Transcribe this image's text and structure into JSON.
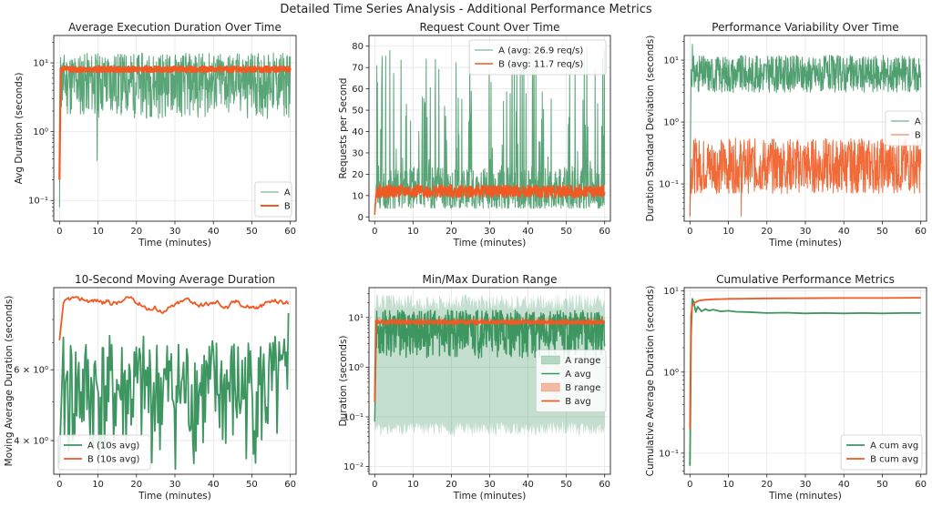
{
  "figure": {
    "suptitle": "Detailed Time Series Analysis - Additional Performance Metrics",
    "colors": {
      "A": "#3d9560",
      "B": "#f05a22"
    }
  },
  "chart_data": [
    {
      "type": "line",
      "title": "Average Execution Duration Over Time",
      "xlabel": "Time (minutes)",
      "ylabel": "Avg Duration (seconds)",
      "xlim": [
        -1.5,
        61.5
      ],
      "ylim": [
        0.05,
        25
      ],
      "yscale": "log",
      "xticks": [
        0,
        10,
        20,
        30,
        40,
        50,
        60
      ],
      "yticks": [
        0.1,
        1,
        10
      ],
      "yticklabels": [
        "10⁻¹",
        "10⁰",
        "10¹"
      ],
      "legend": {
        "position": "lower-right",
        "entries": [
          "A",
          "B"
        ]
      },
      "grid": true,
      "series": [
        {
          "name": "A",
          "color": "#3d9560",
          "start": 0.08,
          "low": 1.5,
          "high": 14,
          "t0": 0.3,
          "x_end": 60,
          "n": 720,
          "seed": 11,
          "style": "jagged",
          "lw": 1,
          "alpha": 0.85,
          "spike_at": 9.8,
          "spike_value": 0.38
        },
        {
          "name": "B",
          "color": "#f05a22",
          "start": 0.2,
          "low": 7.3,
          "high": 8.9,
          "t0": 0.3,
          "x_end": 60,
          "n": 720,
          "seed": 12,
          "style": "noise",
          "lw": 2.2,
          "alpha": 1
        }
      ]
    },
    {
      "type": "line",
      "title": "Request Count Over Time",
      "xlabel": "Time (minutes)",
      "ylabel": "Requests per Second",
      "xlim": [
        -1.5,
        61.5
      ],
      "ylim": [
        -2,
        85
      ],
      "yscale": "linear",
      "xticks": [
        0,
        10,
        20,
        30,
        40,
        50,
        60
      ],
      "yticks": [
        0,
        10,
        20,
        30,
        40,
        50,
        60,
        70,
        80
      ],
      "yticklabels": [
        "0",
        "10",
        "20",
        "30",
        "40",
        "50",
        "60",
        "70",
        "80"
      ],
      "legend": {
        "position": "top-right",
        "entries": [
          "A (avg: 26.9 req/s)",
          "B (avg: 11.7 req/s)"
        ]
      },
      "grid": true,
      "series": [
        {
          "name": "A (avg: 26.9 req/s)",
          "color": "#3d9560",
          "start": 5,
          "low": 4,
          "high": 80,
          "t0": 0.3,
          "x_end": 60,
          "n": 720,
          "seed": 21,
          "style": "spiky",
          "lw": 1,
          "alpha": 0.85
        },
        {
          "name": "B (avg: 11.7 req/s)",
          "color": "#f05a22",
          "start": 1,
          "low": 9,
          "high": 15,
          "t0": 0.3,
          "x_end": 60,
          "n": 720,
          "seed": 22,
          "style": "noise",
          "lw": 1.6,
          "alpha": 1
        }
      ]
    },
    {
      "type": "line",
      "title": "Performance Variability Over Time",
      "xlabel": "Time (minutes)",
      "ylabel": "Duration Standard Deviation (seconds)",
      "xlim": [
        -1.5,
        61.5
      ],
      "ylim": [
        0.025,
        25
      ],
      "yscale": "log",
      "xticks": [
        0,
        10,
        20,
        30,
        40,
        50,
        60
      ],
      "yticks": [
        0.1,
        1,
        10
      ],
      "yticklabels": [
        "10⁻¹",
        "10⁰",
        "10¹"
      ],
      "legend": {
        "position": "center-right",
        "entries": [
          "A",
          "B"
        ]
      },
      "grid": true,
      "series": [
        {
          "name": "A",
          "color": "#3d9560",
          "start": 0.03,
          "low": 3,
          "high": 12,
          "t0": 0.3,
          "x_end": 60,
          "n": 720,
          "seed": 31,
          "style": "noise",
          "lw": 1,
          "alpha": 0.9,
          "spike_at": 0.6,
          "spike_value": 18
        },
        {
          "name": "B",
          "color": "#f05a22",
          "start": 0.03,
          "low": 0.07,
          "high": 0.55,
          "t0": 0.3,
          "x_end": 60,
          "n": 720,
          "seed": 32,
          "style": "noise",
          "lw": 1,
          "alpha": 0.9,
          "spike_at": 13.3,
          "spike_value": 0.03
        }
      ]
    },
    {
      "type": "line",
      "title": "10-Second Moving Average Duration",
      "xlabel": "Time (minutes)",
      "ylabel": "Moving Average Duration (seconds)",
      "xlim": [
        -1.5,
        61.5
      ],
      "ylim": [
        3.3,
        9.6
      ],
      "yscale": "log",
      "xticks": [
        0,
        10,
        20,
        30,
        40,
        50,
        60
      ],
      "yticks": [
        4,
        6
      ],
      "yticklabels": [
        "4 × 10⁰",
        "6 × 10⁰"
      ],
      "legend": {
        "position": "lower-left",
        "entries": [
          "A (10s avg)",
          "B (10s avg)"
        ]
      },
      "grid": true,
      "series": [
        {
          "name": "A (10s avg)",
          "color": "#3d9560",
          "start": 3.5,
          "low": 3.4,
          "high": 7.3,
          "t0": 1,
          "x_end": 59.5,
          "n": 220,
          "seed": 41,
          "style": "jagged",
          "lw": 1.8,
          "alpha": 1,
          "spike_at": 59.5,
          "spike_value": 8.3
        },
        {
          "name": "B (10s avg)",
          "color": "#f05a22",
          "start": 7.1,
          "low": 8.3,
          "high": 9.1,
          "t0": 1,
          "x_end": 59.5,
          "n": 220,
          "seed": 42,
          "style": "smooth",
          "lw": 1.8,
          "alpha": 1
        }
      ]
    },
    {
      "type": "area",
      "title": "Min/Max Duration Range",
      "xlabel": "Time (minutes)",
      "ylabel": "Duration (seconds)",
      "xlim": [
        -1.5,
        61.5
      ],
      "ylim": [
        0.007,
        40
      ],
      "yscale": "log",
      "xticks": [
        0,
        10,
        20,
        30,
        40,
        50,
        60
      ],
      "yticks": [
        0.01,
        0.1,
        1,
        10
      ],
      "yticklabels": [
        "10⁻²",
        "10⁻¹",
        "10⁰",
        "10¹"
      ],
      "legend": {
        "position": "center-right",
        "entries": [
          "A range",
          "A avg",
          "B range",
          "B avg"
        ]
      },
      "grid": true,
      "bands": [
        {
          "name": "A range",
          "color": "#3d9560",
          "low": [
            0.04,
            0.08
          ],
          "high": [
            14,
            30
          ],
          "t0": 0,
          "x_end": 60,
          "n": 360,
          "seed": 51,
          "alpha": 0.3
        },
        {
          "name": "B range",
          "color": "#f05a22",
          "low": [
            6.8,
            7.6
          ],
          "high": [
            9,
            10.5
          ],
          "t0": 0.3,
          "x_end": 60,
          "n": 360,
          "seed": 52,
          "alpha": 0.35
        }
      ],
      "series": [
        {
          "name": "A avg",
          "color": "#3d9560",
          "start": 0.08,
          "low": 1.5,
          "high": 14,
          "t0": 0.3,
          "x_end": 60,
          "n": 720,
          "seed": 53,
          "style": "jagged",
          "lw": 1.4,
          "alpha": 1
        },
        {
          "name": "B avg",
          "color": "#f05a22",
          "start": 0.2,
          "low": 7.3,
          "high": 8.9,
          "t0": 0.3,
          "x_end": 60,
          "n": 720,
          "seed": 54,
          "style": "noise",
          "lw": 1.8,
          "alpha": 1
        }
      ]
    },
    {
      "type": "line",
      "title": "Cumulative Performance Metrics",
      "xlabel": "Time (minutes)",
      "ylabel": "Cumulative Average Duration (seconds)",
      "xlim": [
        -1.5,
        61.5
      ],
      "ylim": [
        0.055,
        11
      ],
      "yscale": "log",
      "xticks": [
        0,
        10,
        20,
        30,
        40,
        50,
        60
      ],
      "yticks": [
        0.1,
        1,
        10
      ],
      "yticklabels": [
        "10⁻¹",
        "10⁰",
        "10¹"
      ],
      "legend": {
        "position": "lower-right",
        "entries": [
          "A cum avg",
          "B cum avg"
        ]
      },
      "grid": true,
      "series": [
        {
          "name": "A cum avg",
          "color": "#3d9560",
          "x": [
            0,
            0.15,
            0.3,
            0.6,
            1,
            1.5,
            2,
            3,
            4,
            5,
            6,
            8,
            10,
            12,
            15,
            20,
            25,
            30,
            35,
            40,
            45,
            50,
            55,
            60
          ],
          "y": [
            0.07,
            0.5,
            3,
            8,
            7.2,
            5.5,
            6.4,
            5.6,
            6.0,
            5.7,
            5.9,
            5.6,
            5.7,
            5.55,
            5.5,
            5.35,
            5.4,
            5.3,
            5.35,
            5.3,
            5.35,
            5.3,
            5.35,
            5.35
          ],
          "lw": 1.8,
          "alpha": 1
        },
        {
          "name": "B cum avg",
          "color": "#f05a22",
          "x": [
            0,
            0.15,
            0.3,
            0.6,
            1,
            1.5,
            2,
            3,
            4,
            5,
            6,
            8,
            10,
            15,
            20,
            30,
            40,
            50,
            60
          ],
          "y": [
            0.2,
            1.2,
            5,
            6.6,
            7.0,
            7.3,
            7.5,
            7.7,
            7.8,
            7.85,
            7.9,
            7.95,
            8.0,
            8.05,
            8.1,
            8.15,
            8.2,
            8.2,
            8.25
          ],
          "lw": 1.8,
          "alpha": 1
        }
      ]
    }
  ]
}
